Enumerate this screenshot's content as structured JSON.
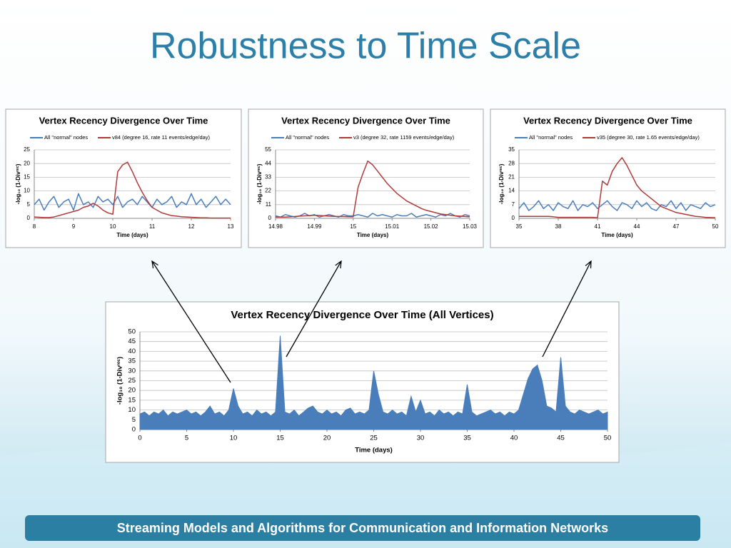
{
  "slide": {
    "title": "Robustness to Time Scale",
    "footer": "Streaming Models and Algorithms for Communication and Information Networks"
  },
  "chart_data": [
    {
      "type": "line",
      "title": "Vertex Recency Divergence Over Time",
      "x_label": "Time (days)",
      "y_label": "-log₁₀ (1-Divʳᵉᶜ)",
      "grid": true,
      "x": [
        8,
        8.125,
        8.25,
        8.375,
        8.5,
        8.625,
        8.75,
        8.875,
        9,
        9.125,
        9.25,
        9.375,
        9.5,
        9.625,
        9.75,
        9.875,
        10,
        10.125,
        10.25,
        10.375,
        10.5,
        10.625,
        10.75,
        10.875,
        11,
        11.125,
        11.25,
        11.375,
        11.5,
        11.625,
        11.75,
        11.875,
        12,
        12.125,
        12.25,
        12.375,
        12.5,
        12.625,
        12.75,
        12.875,
        13
      ],
      "xlim": [
        8,
        13
      ],
      "xticks": [
        8,
        9,
        10,
        11,
        12,
        13
      ],
      "ylim": [
        0,
        25
      ],
      "yticks": [
        0,
        5,
        10,
        15,
        20,
        25
      ],
      "series": [
        {
          "name": "All \"normal\" nodes",
          "color": "#4a7ebb",
          "values": [
            5,
            7,
            3,
            6,
            8,
            4,
            6,
            7,
            3,
            9,
            5,
            6,
            4,
            8,
            6,
            7,
            5,
            8,
            4,
            6,
            7,
            5,
            8,
            6,
            4,
            7,
            5,
            6,
            8,
            4,
            6,
            5,
            9,
            5,
            7,
            4,
            6,
            8,
            5,
            7,
            5
          ]
        },
        {
          "name": "v84 (degree 16, rate 11 events/edge/day)",
          "color": "#b03a3a",
          "values": [
            0.5,
            0.4,
            0.3,
            0.3,
            0.5,
            1,
            1.5,
            2,
            2.5,
            3,
            4,
            4.5,
            5.5,
            4.5,
            3,
            2,
            1.5,
            17,
            19.5,
            20.5,
            17,
            13,
            9.5,
            6.5,
            4,
            3,
            2,
            1.5,
            1,
            0.8,
            0.6,
            0.5,
            0.4,
            0.3,
            0.2,
            0.2,
            0.1,
            0.1,
            0.1,
            0.1,
            0.1
          ]
        }
      ]
    },
    {
      "type": "line",
      "title": "Vertex Recency Divergence Over Time",
      "x_label": "Time (days)",
      "y_label": "-log₁₀ (1-Divʳᵉᶜ)",
      "grid": true,
      "x": [
        14.98,
        14.98125,
        14.9825,
        14.98375,
        14.985,
        14.98625,
        14.9875,
        14.98875,
        14.99,
        14.99125,
        14.9925,
        14.99375,
        14.995,
        14.99625,
        14.9975,
        14.99875,
        15,
        15.00125,
        15.0025,
        15.00375,
        15.005,
        15.00625,
        15.0075,
        15.00875,
        15.01,
        15.01125,
        15.0125,
        15.01375,
        15.015,
        15.01625,
        15.0175,
        15.01875,
        15.02,
        15.02125,
        15.0225,
        15.02375,
        15.025,
        15.02625,
        15.0275,
        15.02875,
        15.03
      ],
      "xlim": [
        14.98,
        15.03
      ],
      "xticks": [
        14.98,
        14.99,
        15,
        15.01,
        15.02,
        15.03
      ],
      "ylim": [
        0,
        55
      ],
      "yticks": [
        0,
        11,
        22,
        33,
        44,
        55
      ],
      "series": [
        {
          "name": "All \"normal\" nodes",
          "color": "#4a7ebb",
          "values": [
            2,
            1,
            3,
            2,
            1,
            2,
            4,
            2,
            3,
            1,
            2,
            3,
            2,
            1,
            3,
            2,
            2,
            3,
            2,
            1,
            4,
            2,
            3,
            2,
            1,
            3,
            2,
            2,
            4,
            1,
            2,
            3,
            2,
            1,
            3,
            2,
            4,
            2,
            1,
            3,
            2
          ]
        },
        {
          "name": "v3 (degree 32, rate 1159 events/edge/day)",
          "color": "#b03a3a",
          "values": [
            1,
            1,
            1,
            1.2,
            1.5,
            1.8,
            2,
            2.2,
            2.5,
            2.3,
            2,
            1.8,
            1.6,
            1.5,
            1.4,
            1.3,
            1.2,
            25,
            36,
            46,
            43,
            38,
            33,
            28,
            24,
            20,
            17,
            14,
            12,
            10,
            8,
            6.5,
            5.5,
            4.5,
            3.5,
            3,
            2.5,
            2,
            1.8,
            1.5,
            1.2
          ]
        }
      ]
    },
    {
      "type": "line",
      "title": "Vertex Recency Divergence Over Time",
      "x_label": "Time (days)",
      "y_label": "-log₁₀ (1-Divʳᵉᶜ)",
      "grid": true,
      "x": [
        35,
        35.375,
        35.75,
        36.125,
        36.5,
        36.875,
        37.25,
        37.625,
        38,
        38.375,
        38.75,
        39.125,
        39.5,
        39.875,
        40.25,
        40.625,
        41,
        41.375,
        41.75,
        42.125,
        42.5,
        42.875,
        43.25,
        43.625,
        44,
        44.375,
        44.75,
        45.125,
        45.5,
        45.875,
        46.25,
        46.625,
        47,
        47.375,
        47.75,
        48.125,
        48.5,
        48.875,
        49.25,
        49.625,
        50
      ],
      "xlim": [
        35,
        50
      ],
      "xticks": [
        35,
        38,
        41,
        44,
        47,
        50
      ],
      "ylim": [
        0,
        35
      ],
      "yticks": [
        0,
        7,
        14,
        21,
        28,
        35
      ],
      "series": [
        {
          "name": "All \"normal\" nodes",
          "color": "#4a7ebb",
          "values": [
            5,
            8,
            4,
            6,
            9,
            5,
            7,
            4,
            8,
            6,
            5,
            9,
            4,
            7,
            6,
            8,
            5,
            7,
            9,
            6,
            4,
            8,
            7,
            5,
            9,
            6,
            8,
            5,
            4,
            7,
            6,
            9,
            5,
            8,
            4,
            7,
            6,
            5,
            8,
            6,
            7
          ]
        },
        {
          "name": "v35 (degree 30, rate 1.65 events/edge/day)",
          "color": "#b03a3a",
          "values": [
            1,
            1,
            1,
            1,
            1,
            1,
            1,
            0.8,
            0.5,
            0.5,
            0.5,
            0.5,
            0.5,
            0.5,
            0.5,
            0.5,
            0.3,
            19,
            17,
            24,
            28,
            31,
            27,
            22,
            17,
            14,
            12,
            10,
            8,
            6,
            5,
            4,
            3,
            2.5,
            2,
            1.5,
            1,
            0.8,
            0.5,
            0.4,
            0.3
          ]
        }
      ]
    },
    {
      "type": "area",
      "title": "Vertex Recency Divergence Over Time (All Vertices)",
      "x_label": "Time (days)",
      "y_label": "-log₁₀ (1-Divʳᵉᶜ)",
      "grid": true,
      "x": [
        0,
        0.5,
        1,
        1.5,
        2,
        2.5,
        3,
        3.5,
        4,
        4.5,
        5,
        5.5,
        6,
        6.5,
        7,
        7.5,
        8,
        8.5,
        9,
        9.5,
        10,
        10.5,
        11,
        11.5,
        12,
        12.5,
        13,
        13.5,
        14,
        14.5,
        15,
        15.5,
        16,
        16.5,
        17,
        17.5,
        18,
        18.5,
        19,
        19.5,
        20,
        20.5,
        21,
        21.5,
        22,
        22.5,
        23,
        23.5,
        24,
        24.5,
        25,
        25.5,
        26,
        26.5,
        27,
        27.5,
        28,
        28.5,
        29,
        29.5,
        30,
        30.5,
        31,
        31.5,
        32,
        32.5,
        33,
        33.5,
        34,
        34.5,
        35,
        35.5,
        36,
        36.5,
        37,
        37.5,
        38,
        38.5,
        39,
        39.5,
        40,
        40.5,
        41,
        41.5,
        42,
        42.5,
        43,
        43.5,
        44,
        44.5,
        45,
        45.5,
        46,
        46.5,
        47,
        47.5,
        48,
        48.5,
        49,
        49.5,
        50
      ],
      "xlim": [
        0,
        50
      ],
      "xticks": [
        0,
        5,
        10,
        15,
        20,
        25,
        30,
        35,
        40,
        45,
        50
      ],
      "ylim": [
        0,
        50
      ],
      "yticks": [
        0,
        5,
        10,
        15,
        20,
        25,
        30,
        35,
        40,
        45,
        50
      ],
      "series": [
        {
          "color": "#4a7ebb",
          "values": [
            8,
            9,
            7,
            9,
            8,
            10,
            7,
            9,
            8,
            9,
            10,
            8,
            9,
            7,
            9,
            12,
            8,
            9,
            7,
            10,
            21,
            12,
            8,
            9,
            7,
            10,
            8,
            9,
            7,
            9,
            48,
            9,
            8,
            10,
            7,
            9,
            11,
            12,
            9,
            8,
            10,
            8,
            9,
            7,
            10,
            11,
            8,
            9,
            8,
            10,
            30,
            18,
            9,
            8,
            10,
            8,
            9,
            7,
            17,
            9,
            15,
            8,
            9,
            7,
            10,
            8,
            9,
            7,
            9,
            8,
            23,
            9,
            7,
            8,
            9,
            10,
            8,
            9,
            7,
            9,
            8,
            10,
            18,
            26,
            31,
            33,
            25,
            12,
            11,
            9,
            37,
            12,
            9,
            8,
            10,
            9,
            8,
            9,
            10,
            8,
            9
          ]
        }
      ]
    }
  ]
}
